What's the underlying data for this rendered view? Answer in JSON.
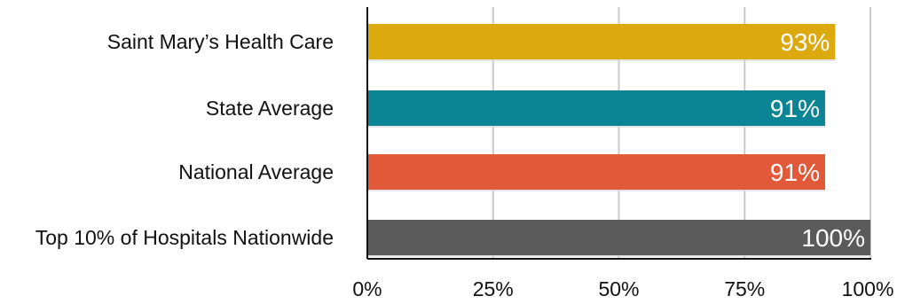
{
  "chart_data": {
    "type": "bar",
    "orientation": "horizontal",
    "categories": [
      "Saint Mary’s Health Care",
      "State Average",
      "National Average",
      "Top 10% of Hospitals Nationwide"
    ],
    "values": [
      93,
      91,
      91,
      100
    ],
    "value_labels": [
      "93%",
      "91%",
      "91%",
      "100%"
    ],
    "colors": [
      "#DCA90F",
      "#0B8595",
      "#E2593A",
      "#5B5B5B"
    ],
    "xlim": [
      0,
      100
    ],
    "xticks": [
      0,
      25,
      50,
      75,
      100
    ],
    "xtick_labels": [
      "0%",
      "25%",
      "50%",
      "75%",
      "100%"
    ],
    "grid": "vertical",
    "legend": "none"
  }
}
